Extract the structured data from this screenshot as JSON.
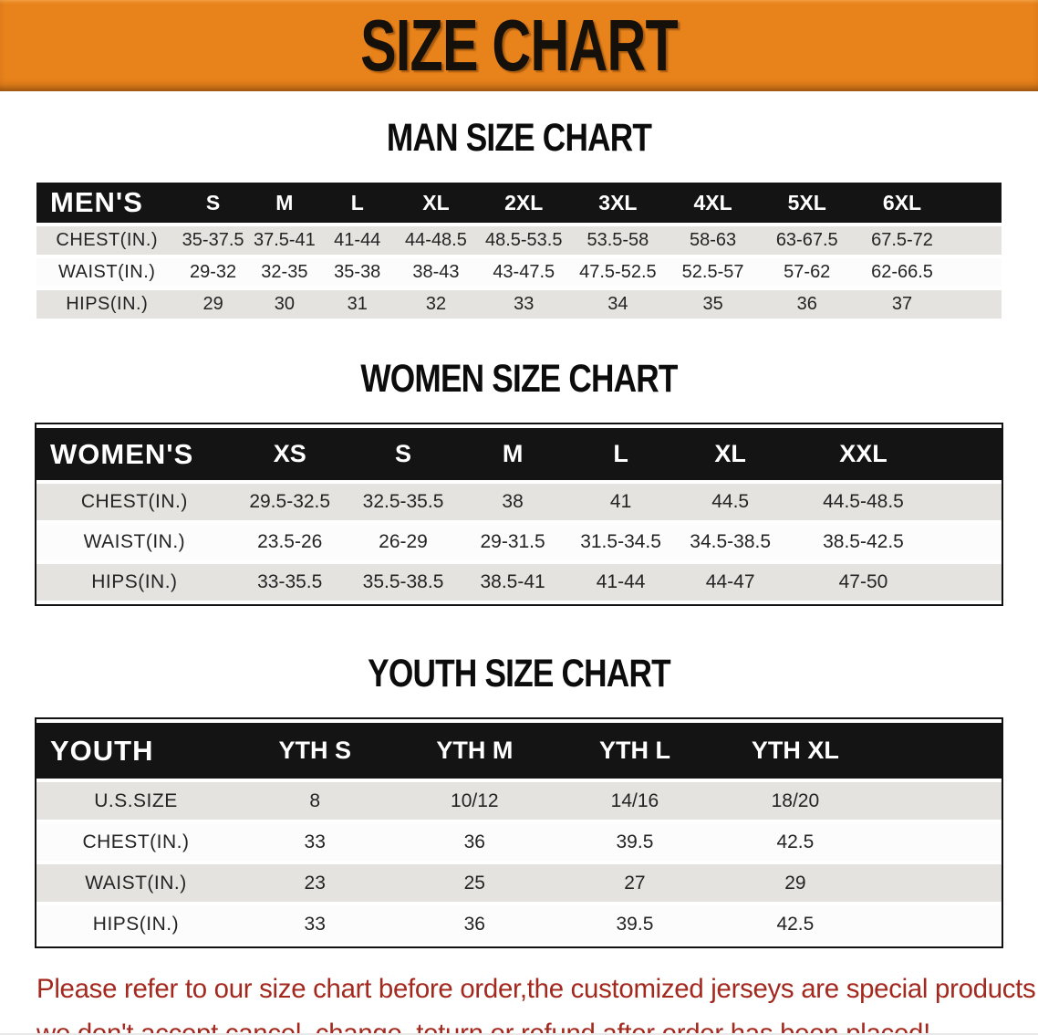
{
  "banner": {
    "title": "SIZE CHART"
  },
  "sections": [
    {
      "title": "MAN SIZE CHART",
      "header_label": "MEN'S",
      "columns": [
        "S",
        "M",
        "L",
        "XL",
        "2XL",
        "3XL",
        "4XL",
        "5XL",
        "6XL"
      ],
      "rows": [
        {
          "label": "CHEST(IN.)",
          "values": [
            "35-37.5",
            "37.5-41",
            "41-44",
            "44-48.5",
            "48.5-53.5",
            "53.5-58",
            "58-63",
            "63-67.5",
            "67.5-72"
          ]
        },
        {
          "label": "WAIST(IN.)",
          "values": [
            "29-32",
            "32-35",
            "35-38",
            "38-43",
            "43-47.5",
            "47.5-52.5",
            "52.5-57",
            "57-62",
            "62-66.5"
          ]
        },
        {
          "label": "HIPS(IN.)",
          "values": [
            "29",
            "30",
            "31",
            "32",
            "33",
            "34",
            "35",
            "36",
            "37"
          ]
        }
      ]
    },
    {
      "title": "WOMEN SIZE CHART",
      "header_label": "WOMEN'S",
      "columns": [
        "XS",
        "S",
        "M",
        "L",
        "XL",
        "XXL"
      ],
      "rows": [
        {
          "label": "CHEST(IN.)",
          "values": [
            "29.5-32.5",
            "32.5-35.5",
            "38",
            "41",
            "44.5",
            "44.5-48.5"
          ]
        },
        {
          "label": "WAIST(IN.)",
          "values": [
            "23.5-26",
            "26-29",
            "29-31.5",
            "31.5-34.5",
            "34.5-38.5",
            "38.5-42.5"
          ]
        },
        {
          "label": "HIPS(IN.)",
          "values": [
            "33-35.5",
            "35.5-38.5",
            "38.5-41",
            "41-44",
            "44-47",
            "47-50"
          ]
        }
      ]
    },
    {
      "title": "YOUTH SIZE CHART",
      "header_label": "YOUTH",
      "columns": [
        "YTH S",
        "YTH M",
        "YTH L",
        "YTH XL"
      ],
      "rows": [
        {
          "label": "U.S.SIZE",
          "values": [
            "8",
            "10/12",
            "14/16",
            "18/20"
          ]
        },
        {
          "label": "CHEST(IN.)",
          "values": [
            "33",
            "36",
            "39.5",
            "42.5"
          ]
        },
        {
          "label": "WAIST(IN.)",
          "values": [
            "23",
            "25",
            "27",
            "29"
          ]
        },
        {
          "label": "HIPS(IN.)",
          "values": [
            "33",
            "36",
            "39.5",
            "42.5"
          ]
        }
      ]
    }
  ],
  "disclaimer": {
    "line1": "Please refer to our size chart before order,the customized jerseys are special products,",
    "line2": "we don't accept cancel, change, teturn or refund after order has been placed!"
  },
  "colors": {
    "banner_bg": "#E8821B",
    "table_header_bg": "#141414",
    "row_shaded": "#E4E3E0",
    "row_plain": "#FCFCFC",
    "disclaimer_text": "#A3281E"
  }
}
